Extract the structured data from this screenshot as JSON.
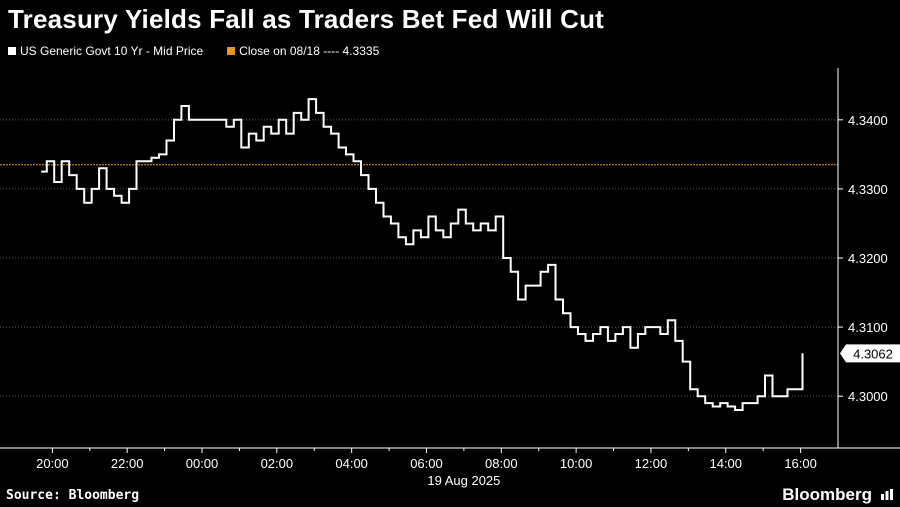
{
  "title": "Treasury Yields Fall as Traders Bet Fed Will Cut",
  "legend": {
    "series_label": "US Generic Govt 10 Yr - Mid Price",
    "close_label": "Close on 08/18 ---- 4.3335"
  },
  "source": "Source: Bloomberg",
  "brand": "Bloomberg",
  "colors": {
    "background": "#000000",
    "line": "#ffffff",
    "close": "#e8961e",
    "grid": "#555555"
  },
  "chart_data": {
    "type": "line",
    "xlabel": "19 Aug 2025",
    "ylabel": "",
    "x_ticks": [
      "20:00",
      "22:00",
      "00:00",
      "02:00",
      "04:00",
      "06:00",
      "08:00",
      "10:00",
      "12:00",
      "14:00",
      "16:00"
    ],
    "y_ticks": [
      "4.3000",
      "4.3100",
      "4.3200",
      "4.3300",
      "4.3400"
    ],
    "ylim": [
      4.2925,
      4.3475
    ],
    "xlim_hours": [
      18.6,
      41.0
    ],
    "reference_line": {
      "label": "Close on 08/18",
      "value": 4.3335
    },
    "last_value_label": "4.3062",
    "series": [
      {
        "name": "US Generic Govt 10 Yr - Mid Price",
        "x": [
          19.7,
          19.85,
          20.05,
          20.25,
          20.45,
          20.65,
          20.85,
          21.05,
          21.25,
          21.45,
          21.65,
          21.85,
          22.05,
          22.25,
          22.45,
          22.65,
          22.85,
          23.05,
          23.25,
          23.45,
          23.65,
          23.85,
          24.05,
          24.25,
          24.45,
          24.65,
          24.85,
          25.05,
          25.25,
          25.45,
          25.65,
          25.85,
          26.05,
          26.25,
          26.45,
          26.65,
          26.85,
          27.05,
          27.25,
          27.45,
          27.65,
          27.85,
          28.05,
          28.25,
          28.45,
          28.65,
          28.85,
          29.05,
          29.25,
          29.45,
          29.65,
          29.85,
          30.05,
          30.25,
          30.45,
          30.65,
          30.85,
          31.05,
          31.25,
          31.45,
          31.65,
          31.85,
          32.05,
          32.25,
          32.45,
          32.65,
          32.85,
          33.05,
          33.25,
          33.45,
          33.65,
          33.85,
          34.05,
          34.25,
          34.45,
          34.65,
          34.85,
          35.05,
          35.25,
          35.45,
          35.65,
          35.85,
          36.05,
          36.25,
          36.45,
          36.65,
          36.85,
          37.05,
          37.25,
          37.45,
          37.65,
          37.85,
          38.05,
          38.25,
          38.45,
          38.65,
          38.85,
          39.05,
          39.25,
          39.45,
          39.65,
          39.85,
          40.05
        ],
        "values": [
          4.3325,
          4.334,
          4.331,
          4.334,
          4.332,
          4.33,
          4.328,
          4.33,
          4.333,
          4.33,
          4.329,
          4.328,
          4.33,
          4.334,
          4.334,
          4.3345,
          4.335,
          4.337,
          4.34,
          4.342,
          4.34,
          4.34,
          4.34,
          4.34,
          4.34,
          4.339,
          4.34,
          4.336,
          4.338,
          4.337,
          4.339,
          4.338,
          4.34,
          4.338,
          4.341,
          4.34,
          4.343,
          4.341,
          4.339,
          4.338,
          4.336,
          4.335,
          4.334,
          4.332,
          4.33,
          4.328,
          4.326,
          4.325,
          4.323,
          4.322,
          4.324,
          4.323,
          4.326,
          4.324,
          4.323,
          4.325,
          4.327,
          4.325,
          4.324,
          4.325,
          4.324,
          4.326,
          4.32,
          4.318,
          4.314,
          4.316,
          4.316,
          4.318,
          4.319,
          4.314,
          4.312,
          4.31,
          4.309,
          4.308,
          4.309,
          4.31,
          4.308,
          4.309,
          4.31,
          4.307,
          4.309,
          4.31,
          4.31,
          4.309,
          4.311,
          4.308,
          4.305,
          4.301,
          4.3,
          4.299,
          4.2985,
          4.299,
          4.2985,
          4.298,
          4.299,
          4.299,
          4.3,
          4.303,
          4.3,
          4.3,
          4.301,
          4.301,
          4.3062
        ]
      }
    ]
  }
}
